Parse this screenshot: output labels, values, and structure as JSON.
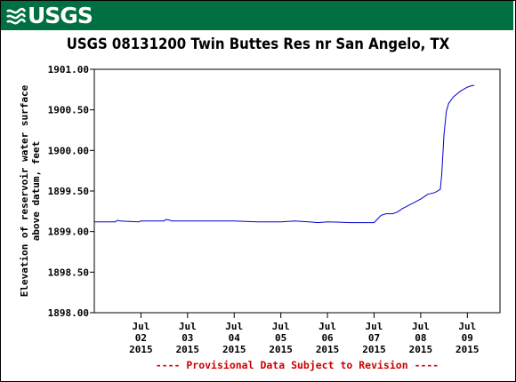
{
  "header": {
    "logo_text": "USGS",
    "logo_icon": "usgs-wave-icon"
  },
  "chart_data": {
    "type": "line",
    "title": "USGS 08131200 Twin Buttes Res nr San Angelo, TX",
    "ylabel_line1": "Elevation of reservoir water surface",
    "ylabel_line2": "above datum, feet",
    "ylim": [
      1898.0,
      1901.0
    ],
    "yticks": [
      "1898.00",
      "1898.50",
      "1899.00",
      "1899.50",
      "1900.00",
      "1900.50",
      "1901.00"
    ],
    "xlim_days": [
      0,
      8.7
    ],
    "xticks": [
      {
        "day": 1,
        "l1": "Jul",
        "l2": "02",
        "l3": "2015"
      },
      {
        "day": 2,
        "l1": "Jul",
        "l2": "03",
        "l3": "2015"
      },
      {
        "day": 3,
        "l1": "Jul",
        "l2": "04",
        "l3": "2015"
      },
      {
        "day": 4,
        "l1": "Jul",
        "l2": "05",
        "l3": "2015"
      },
      {
        "day": 5,
        "l1": "Jul",
        "l2": "06",
        "l3": "2015"
      },
      {
        "day": 6,
        "l1": "Jul",
        "l2": "07",
        "l3": "2015"
      },
      {
        "day": 7,
        "l1": "Jul",
        "l2": "08",
        "l3": "2015"
      },
      {
        "day": 8,
        "l1": "Jul",
        "l2": "09",
        "l3": "2015"
      }
    ],
    "line_color": "#0000cc",
    "series": [
      {
        "x": [
          0.0,
          0.45,
          0.5,
          0.55,
          0.95,
          1.0,
          1.5,
          1.53,
          1.62,
          1.66,
          2.0,
          3.0,
          3.5,
          4.0,
          4.3,
          4.6,
          4.8,
          5.0,
          5.5,
          6.0,
          6.05,
          6.15,
          6.25,
          6.4,
          6.5,
          6.6,
          6.8,
          7.0,
          7.15,
          7.3,
          7.42,
          7.45,
          7.5,
          7.55,
          7.6,
          7.7,
          7.85,
          8.0,
          8.1,
          8.15
        ],
        "values": [
          1899.12,
          1899.12,
          1899.14,
          1899.13,
          1899.12,
          1899.13,
          1899.13,
          1899.15,
          1899.14,
          1899.13,
          1899.13,
          1899.13,
          1899.12,
          1899.12,
          1899.13,
          1899.12,
          1899.11,
          1899.12,
          1899.11,
          1899.11,
          1899.14,
          1899.2,
          1899.22,
          1899.22,
          1899.24,
          1899.28,
          1899.34,
          1899.4,
          1899.46,
          1899.48,
          1899.52,
          1899.7,
          1900.2,
          1900.48,
          1900.58,
          1900.66,
          1900.73,
          1900.78,
          1900.8,
          1900.8
        ]
      }
    ],
    "footnote": "---- Provisional Data Subject to Revision ----"
  }
}
